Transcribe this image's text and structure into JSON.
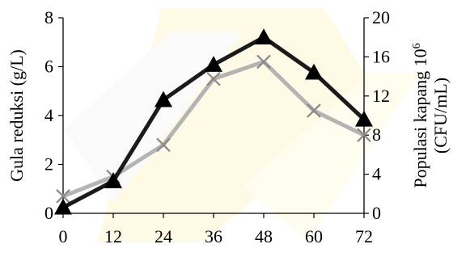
{
  "chart_data": {
    "type": "line",
    "x": [
      0,
      12,
      24,
      36,
      48,
      60,
      72
    ],
    "xlim": [
      0,
      72
    ],
    "xticks": [
      "0",
      "12",
      "24",
      "36",
      "48",
      "60",
      "72"
    ],
    "grid": false,
    "legend": "none",
    "left_axis": {
      "label": "Gula reduksi (g/L)",
      "ylim": [
        0,
        8
      ],
      "ticks": [
        "0",
        "2",
        "4",
        "6",
        "8"
      ]
    },
    "right_axis": {
      "label_line1": "Populasi kapang 10",
      "label_superscript": "6",
      "label_line2": "(CFU/mL)",
      "ylim": [
        0,
        20
      ],
      "ticks": [
        "0",
        "4",
        "8",
        "12",
        "16",
        "20"
      ]
    },
    "series": [
      {
        "axis": "right",
        "marker": "triangle",
        "color": "#1a1a1a",
        "values": [
          0.6,
          3.3,
          11.6,
          15.2,
          18.0,
          14.4,
          9.6
        ]
      },
      {
        "axis": "left",
        "marker": "x",
        "color": "#b4b4b4",
        "values": [
          0.7,
          1.5,
          2.8,
          5.5,
          6.2,
          4.2,
          3.2
        ]
      }
    ]
  }
}
